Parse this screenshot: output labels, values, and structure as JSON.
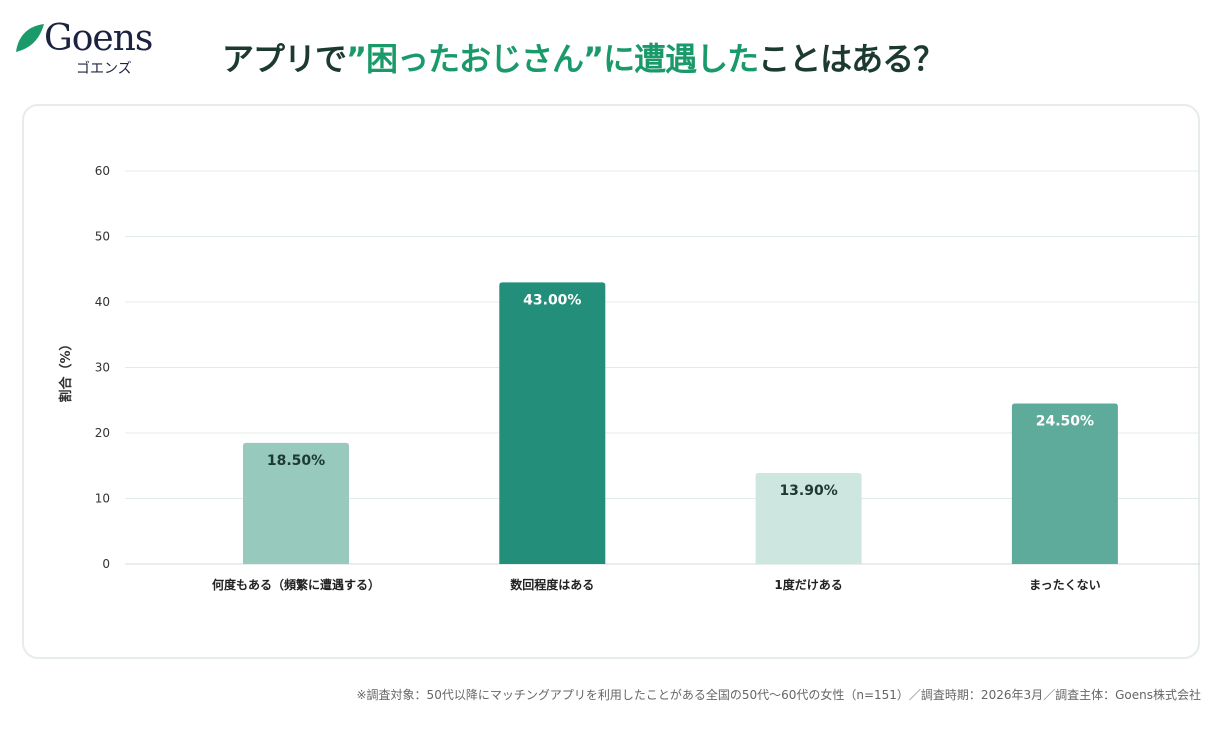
{
  "brand": {
    "name": "Goens",
    "sub": "ゴエンズ",
    "leaf_color": "#1a9a6a"
  },
  "title": {
    "part1": "アプリで",
    "part2": "”困ったおじさん”に遭遇した",
    "part3": "ことはある？"
  },
  "footnote": "※調査対象：50代以降にマッチングアプリを利用したことがある全国の50代〜60代の女性（n=151）／調査時期：2026年3月／調査主体：Goens株式会社",
  "chart_data": {
    "type": "bar",
    "categories": [
      "何度もある（頻繁に遭遇する）",
      "数回程度はある",
      "1度だけある",
      "まったくない"
    ],
    "values": [
      18.5,
      43.0,
      13.9,
      24.5
    ],
    "data_labels": [
      "18.50%",
      "43.00%",
      "13.90%",
      "24.50%"
    ],
    "colors": [
      "#97c9bc",
      "#238f7a",
      "#cde6df",
      "#5eab9b"
    ],
    "label_colors": [
      "#1d3a30",
      "#ffffff",
      "#1d3a30",
      "#ffffff"
    ],
    "ylabel": "割合（%）",
    "ylim": [
      0,
      60
    ],
    "yticks": [
      0,
      10,
      20,
      30,
      40,
      50,
      60
    ],
    "grid": true
  }
}
